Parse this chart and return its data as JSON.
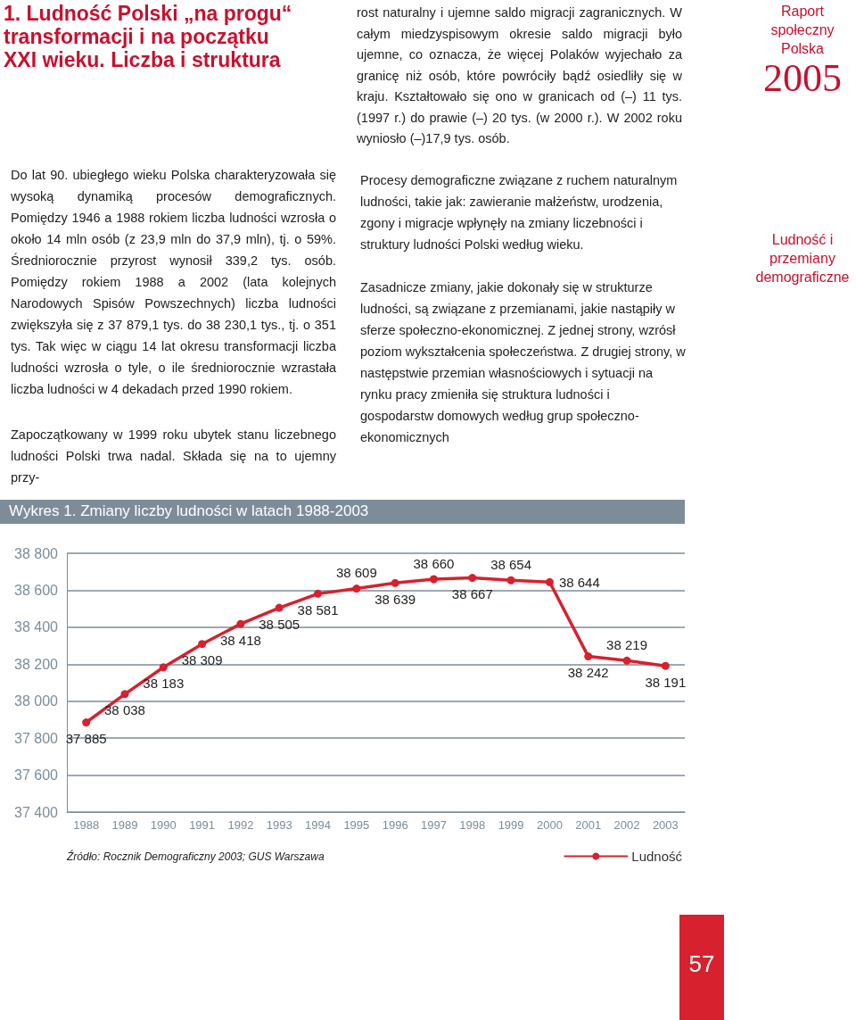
{
  "chart_data": {
    "type": "line",
    "title": "Wykres 1. Zmiany liczby ludności w latach 1988-2003",
    "categories": [
      "1988",
      "1989",
      "1990",
      "1991",
      "1992",
      "1993",
      "1994",
      "1995",
      "1996",
      "1997",
      "1998",
      "1999",
      "2000",
      "2001",
      "2002",
      "2003"
    ],
    "series": [
      {
        "name": "Ludność",
        "color": "#d7212e",
        "values": [
          37885,
          38038,
          38183,
          38309,
          38418,
          38505,
          38581,
          38609,
          38639,
          38660,
          38667,
          38654,
          38644,
          38242,
          38219,
          38191
        ],
        "value_labels": [
          "37 885",
          "38 038",
          "38 183",
          "38 309",
          "38 418",
          "38 505",
          "38 581",
          "38 609",
          "38 639",
          "38 660",
          "38 667",
          "38 654",
          "38 644",
          "38 242",
          "38 219",
          "38 191"
        ]
      }
    ],
    "ylim": [
      37400,
      38800
    ],
    "yticks": [
      {
        "value": 37400,
        "label": "37 400"
      },
      {
        "value": 37600,
        "label": "37 600"
      },
      {
        "value": 37800,
        "label": "37 800"
      },
      {
        "value": 38000,
        "label": "38 000"
      },
      {
        "value": 38200,
        "label": "38 200"
      },
      {
        "value": 38400,
        "label": "38 400"
      },
      {
        "value": 38600,
        "label": "38 600"
      },
      {
        "value": 38800,
        "label": "38 800"
      }
    ],
    "grid": "y",
    "legend": "bottom right",
    "marker": "circle",
    "line_style": "solid",
    "annotations": [
      "1. Ludność Polski „na progu“ transformacji i na początku XXI wieku. Liczba i struktura",
      "rost naturalny i ujemne saldo migracji zagranicznych. W całym miedzyspisowym okresie saldo migracji było ujemne, co oznacza, że więcej Polaków wyjechało za granicę niż osób, które powróciły bądź osiedliły się w kraju. Kształtowało się ono w granicach od (–) 11 tys. (1997 r.) do prawie (–) 20 tys. (w 2000 r.). W 2002 roku wyniosło (–)17,9 tys. osób.",
      "Raport społeczny Polska",
      "2005",
      "Do lat 90. ubiegłego wieku Polska charakteryzowała się wysoką dynamiką procesów demograficznych. Pomiędzy 1946 a 1988 rokiem liczba ludności wzrosła o około 14 mln osób (z 23,9 mln do 37,9 mln), tj. o 59%. Średniorocznie przyrost wynosił 339,2 tys. osób. Pomiędzy rokiem 1988 a 2002 (lata kolejnych Narodowych Spisów Powszechnych) liczba ludności zwiększyła się z 37 879,1 tys. do 38 230,1 tys., tj. o 351 tys. Tak więc w ciągu 14 lat okresu transformacji liczba ludności wzrosła o tyle, o ile średniorocznie wzrastała liczba ludności w 4 dekadach przed 1990 rokiem.",
      "Zapoczątkowany w 1999 roku ubytek stanu liczebnego ludności Polski trwa nadal. Składa się na to ujemny przy-",
      "Procesy demograficzne związane z ruchem naturalnym ludności, takie jak: zawieranie małżeństw, urodzenia, zgony i migracje wpłynęły na zmiany liczebności i struktury ludności Polski według wieku.",
      "Zasadnicze zmiany, jakie dokonały się w strukturze ludności, są związane z przemianami, jakie nastąpiły w sferze społeczno-ekonomicznej. Z jednej strony, wzrósł poziom wykształcenia społeczeństwa. Z drugiej strony, w następstwie przemian własnościowych i sytuacji na rynku pracy zmieniła się struktura ludności i gospodarstw domowych według grup społeczno-ekonomicznych",
      "Ludność i przemiany demograficzne",
      "Źródło: Rocznik Demograficzny 2003; GUS Warszawa",
      "57"
    ]
  }
}
